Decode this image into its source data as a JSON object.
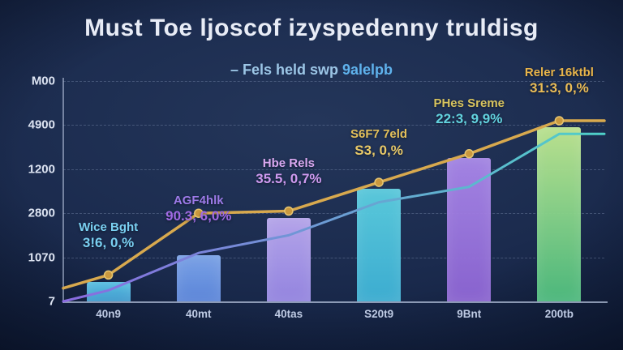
{
  "chart_data": {
    "type": "bar",
    "title": "Must Toe ljoscof izyspedenny truldisg",
    "subtitle": "– Fels held swp 9alelpb",
    "subtitle_plain": "– Fels held swp ",
    "subtitle_em": "9alelpb",
    "categories": [
      "40n9",
      "40mt",
      "40tas",
      "S20t9",
      "9Bnt",
      "200tb"
    ],
    "y_tick_labels": [
      "M00",
      "4900",
      "1200",
      "2800",
      "1070",
      "7"
    ],
    "ylim": [
      0,
      100
    ],
    "grid": true,
    "legend": "none",
    "bars": {
      "values": [
        9,
        21,
        38,
        51,
        65,
        79
      ],
      "colors": [
        [
          "#3f9fd4",
          "#5cc8ea"
        ],
        [
          "#5f8ae0",
          "#7fa8ee"
        ],
        [
          "#9a8ae8",
          "#bcaaf2"
        ],
        [
          "#3fb4d8",
          "#5cd0e2"
        ],
        [
          "#8f66d6",
          "#a988ea"
        ],
        [
          "#4fc080",
          "#c2ea92"
        ]
      ]
    },
    "series": [
      {
        "name": "gold-step-line",
        "color": "#d8a94e",
        "marker_fill": "#c9983f",
        "marker_stroke": "#e7c670",
        "values": [
          12,
          40,
          41,
          54,
          67,
          82
        ],
        "markers": true
      },
      {
        "name": "violet-cyan-line",
        "color_start": "#8a6ae0",
        "color_end": "#4ed0c8",
        "values": [
          5,
          22,
          30,
          45,
          52,
          76
        ],
        "markers": false
      }
    ],
    "point_labels": [
      {
        "name": "Wice Bght",
        "value": "3!6, 0,%",
        "name_color": "#7ad0f2",
        "value_color": "#7ad0f2"
      },
      {
        "name": "AGF4hlk",
        "value": "90.3, 6,0%",
        "name_color": "#9d7ae8",
        "value_color": "#a06ae4"
      },
      {
        "name": "Hbe Rels",
        "value": "35.5, 0,7%",
        "name_color": "#d9a8f0",
        "value_color": "#cf9af0"
      },
      {
        "name": "S6F7 7eld",
        "value": "S3, 0,%",
        "name_color": "#e3c05a",
        "value_color": "#e8c968"
      },
      {
        "name": "PHes Sreme",
        "value": "22:3, 9,9%",
        "name_color": "#d8c45e",
        "value_color": "#62d2de"
      },
      {
        "name": "Reler 16ktbl",
        "value": "31:3, 0,%",
        "name_color": "#e8b44a",
        "value_color": "#eabc56"
      }
    ],
    "colors": {
      "background": "#1b2b4e",
      "axis": "#becae4",
      "gridline": "#a8bade",
      "title_text": "#e8ecf6",
      "subtitle_text": "#9cc6e6"
    }
  }
}
